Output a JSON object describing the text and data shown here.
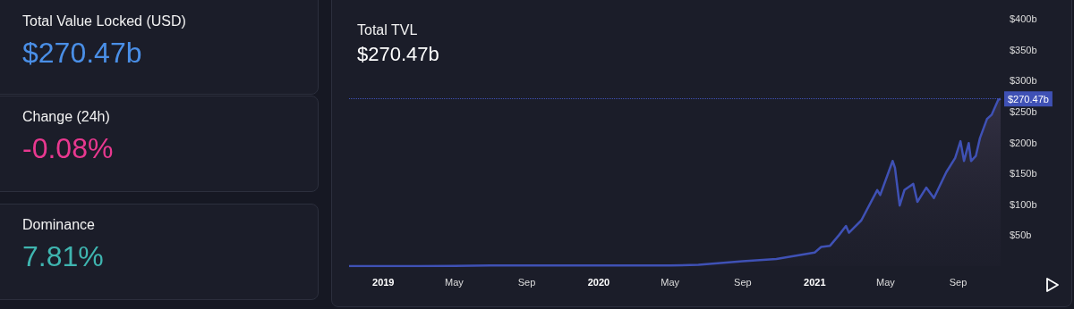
{
  "chart_data": [
    {
      "type": "other",
      "annotations": [
        "Total Value Locked (USD)",
        "$270.47b",
        "Change (24h)",
        "-0.08%",
        "Dominance",
        "7.81%"
      ]
    },
    {
      "type": "area",
      "title": "Total TVL",
      "subtitle": "$270.47b",
      "x": [
        "2018-11-04",
        "2019-03-01",
        "2019-07-01",
        "2020-01-01",
        "2020-05-01",
        "2020-06-18",
        "2020-09-01",
        "2020-10-28",
        "2021-01-01",
        "2021-01-12",
        "2021-01-27",
        "2021-02-11",
        "2021-02-23",
        "2021-02-28",
        "2021-03-21",
        "2021-04-06",
        "2021-04-17",
        "2021-04-22",
        "2021-05-13",
        "2021-05-17",
        "2021-05-25",
        "2021-06-02",
        "2021-06-17",
        "2021-06-24",
        "2021-07-09",
        "2021-07-22",
        "2021-08-12",
        "2021-08-27",
        "2021-09-05",
        "2021-09-11",
        "2021-09-19",
        "2021-09-23",
        "2021-10-01",
        "2021-10-08",
        "2021-10-20",
        "2021-10-28",
        "2021-11-08",
        "2021-11-12"
      ],
      "series": [
        {
          "color": "#3f51b5",
          "values": [
            0,
            0,
            1,
            1,
            1,
            2,
            8,
            11.5,
            22,
            31,
            33,
            50,
            65,
            54,
            74,
            103,
            123,
            115,
            170,
            159,
            98,
            123,
            133,
            104,
            127,
            110,
            152,
            175,
            202,
            170,
            199,
            170,
            178,
            207,
            238,
            245,
            269,
            270.47
          ]
        }
      ],
      "xlim": [
        "2018-11-04",
        "2021-11-12"
      ],
      "xticks": [
        {
          "value": "2019-01-01",
          "label": "2019"
        },
        {
          "value": "2019-05-01",
          "label": "May"
        },
        {
          "value": "2019-09-01",
          "label": "Sep"
        },
        {
          "value": "2020-01-01",
          "label": "2020"
        },
        {
          "value": "2020-05-01",
          "label": "May"
        },
        {
          "value": "2020-09-01",
          "label": "Sep"
        },
        {
          "value": "2021-01-01",
          "label": "2021"
        },
        {
          "value": "2021-05-01",
          "label": "May"
        },
        {
          "value": "2021-09-01",
          "label": "Sep"
        }
      ],
      "ylim": [
        0,
        400
      ],
      "yticks": [
        {
          "value": 50,
          "label": "$50b"
        },
        {
          "value": 100,
          "label": "$100b"
        },
        {
          "value": 150,
          "label": "$150b"
        },
        {
          "value": 200,
          "label": "$200b"
        },
        {
          "value": 250,
          "label": "$250b"
        },
        {
          "value": 300,
          "label": "$300b"
        },
        {
          "value": 350,
          "label": "$350b"
        },
        {
          "value": 400,
          "label": "$400b"
        }
      ],
      "ref_lines": [
        {
          "axis": "y",
          "value": 270.47,
          "label": "$270.47b",
          "color": "#3f51b5",
          "line_style": "dotted"
        }
      ]
    }
  ]
}
